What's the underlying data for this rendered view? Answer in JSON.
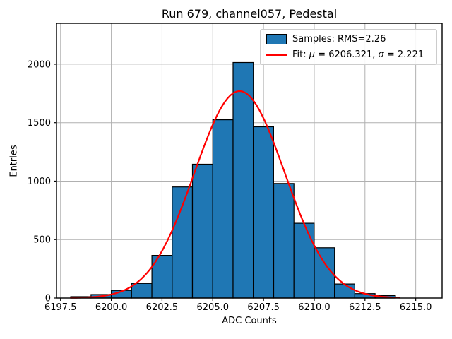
{
  "legend": {
    "samples": "Samples: RMS=2.26",
    "fit_prefix": "Fit: ",
    "mu_symbol": "μ",
    "fit_mid": " = 6206.321, ",
    "sigma_symbol": "σ",
    "fit_suffix": " = 2.221"
  },
  "chart_data": {
    "type": "bar",
    "subtype": "histogram",
    "title": "Run 679, channel057, Pedestal",
    "xlabel": "ADC Counts",
    "ylabel": "Entries",
    "xlim": [
      6197.3,
      6216.3
    ],
    "ylim": [
      0,
      2350
    ],
    "x_ticks": [
      6197.5,
      6200.0,
      6202.5,
      6205.0,
      6207.5,
      6210.0,
      6212.5,
      6215.0
    ],
    "x_tick_labels": [
      "6197.5",
      "6200.0",
      "6202.5",
      "6205.0",
      "6207.5",
      "6210.0",
      "6212.5",
      "6215.0"
    ],
    "y_ticks": [
      0,
      500,
      1000,
      1500,
      2000
    ],
    "y_tick_labels": [
      "0",
      "500",
      "1000",
      "1500",
      "2000"
    ],
    "grid": true,
    "legend_position": "upper right",
    "bin_edges": [
      6198,
      6199,
      6200,
      6201,
      6202,
      6203,
      6204,
      6205,
      6206,
      6207,
      6208,
      6209,
      6210,
      6211,
      6212,
      6213,
      6214
    ],
    "counts": [
      12,
      30,
      65,
      125,
      365,
      950,
      1145,
      1525,
      2015,
      1465,
      980,
      640,
      430,
      120,
      38,
      22
    ],
    "samples_rms": 2.26,
    "fit": {
      "mu": 6206.321,
      "sigma": 2.221,
      "amplitude": 1770,
      "x_min": 6198,
      "x_max": 6214.2
    },
    "colors": {
      "bar_fill": "#1f77b4",
      "bar_edge": "#000000",
      "fit_line": "#ff0000",
      "grid": "#b0b0b0",
      "spine": "#000000"
    }
  }
}
